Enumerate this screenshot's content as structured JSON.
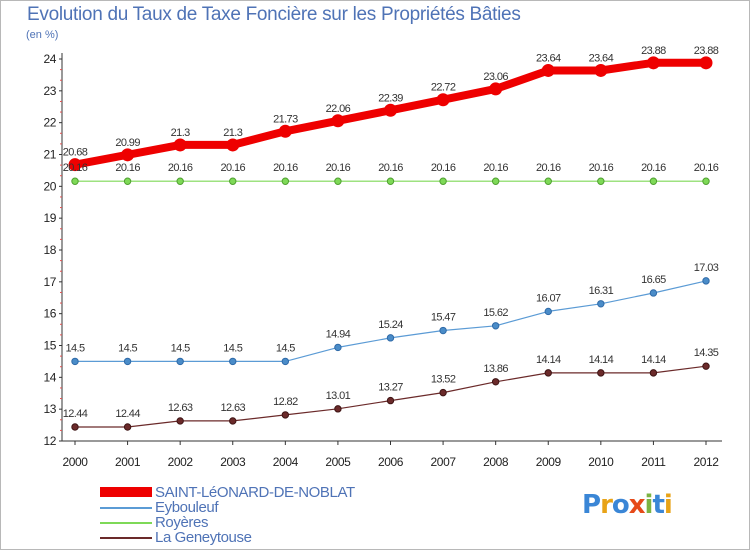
{
  "title": "Evolution du Taux de Taxe Foncière sur les Propriétés Bâties",
  "unit": "(en %)",
  "chart_data": {
    "type": "line",
    "title": "Evolution du Taux de Taxe Foncière sur les Propriétés Bâties",
    "ylabel": "(en %)",
    "xlabel": "",
    "x": [
      2000,
      2001,
      2002,
      2003,
      2004,
      2005,
      2006,
      2007,
      2008,
      2009,
      2010,
      2011,
      2012
    ],
    "yticks": [
      12,
      13,
      14,
      15,
      16,
      17,
      18,
      19,
      20,
      21,
      22,
      23,
      24
    ],
    "ylim": [
      12,
      24
    ],
    "grid": false,
    "legend_position": "bottom-left",
    "series": [
      {
        "name": "SAINT-LéONARD-DE-NOBLAT",
        "color": "#ee0000",
        "values": [
          20.68,
          20.99,
          21.3,
          21.3,
          21.73,
          22.06,
          22.39,
          22.72,
          23.06,
          23.64,
          23.64,
          23.88,
          23.88
        ],
        "labels": [
          "20.68",
          "20.99",
          "21.3",
          "21.3",
          "21.73",
          "22.06",
          "22.39",
          "22.72",
          "23.06",
          "23.64",
          "23.64",
          "23.88",
          "23.88"
        ]
      },
      {
        "name": "Eybouleuf",
        "color": "#5b9bd5",
        "values": [
          14.5,
          14.5,
          14.5,
          14.5,
          14.5,
          14.94,
          15.24,
          15.47,
          15.62,
          16.07,
          16.31,
          16.65,
          17.03
        ],
        "labels": [
          "14.5",
          "14.5",
          "14.5",
          "14.5",
          "14.5",
          "14.94",
          "15.24",
          "15.47",
          "15.62",
          "16.07",
          "16.31",
          "16.65",
          "17.03"
        ]
      },
      {
        "name": "Royères",
        "color": "#7ed957",
        "values": [
          20.16,
          20.16,
          20.16,
          20.16,
          20.16,
          20.16,
          20.16,
          20.16,
          20.16,
          20.16,
          20.16,
          20.16,
          20.16
        ],
        "labels": [
          "20.16",
          "20.16",
          "20.16",
          "20.16",
          "20.16",
          "20.16",
          "20.16",
          "20.16",
          "20.16",
          "20.16",
          "20.16",
          "20.16",
          "20.16"
        ]
      },
      {
        "name": "La Geneytouse",
        "color": "#6b2a2a",
        "values": [
          12.44,
          12.44,
          12.63,
          12.63,
          12.82,
          13.01,
          13.27,
          13.52,
          13.86,
          14.14,
          14.14,
          14.14,
          14.35
        ],
        "labels": [
          "12.44",
          "12.44",
          "12.63",
          "12.63",
          "12.82",
          "13.01",
          "13.27",
          "13.52",
          "13.86",
          "14.14",
          "14.14",
          "14.14",
          "14.35"
        ]
      }
    ]
  },
  "legend": [
    {
      "label": "SAINT-LéONARD-DE-NOBLAT",
      "color": "#ee0000"
    },
    {
      "label": "Eybouleuf",
      "color": "#5b9bd5"
    },
    {
      "label": "Royères",
      "color": "#7ed957"
    },
    {
      "label": "La Geneytouse",
      "color": "#6b2a2a"
    }
  ],
  "logo": {
    "letters": [
      "P",
      "r",
      "o",
      "x",
      "i",
      "t",
      "i"
    ],
    "colors": [
      "#3a86d6",
      "#e8a317",
      "#3a86d6",
      "#e64a19",
      "#7cb342",
      "#3a86d6",
      "#e8a317"
    ]
  }
}
